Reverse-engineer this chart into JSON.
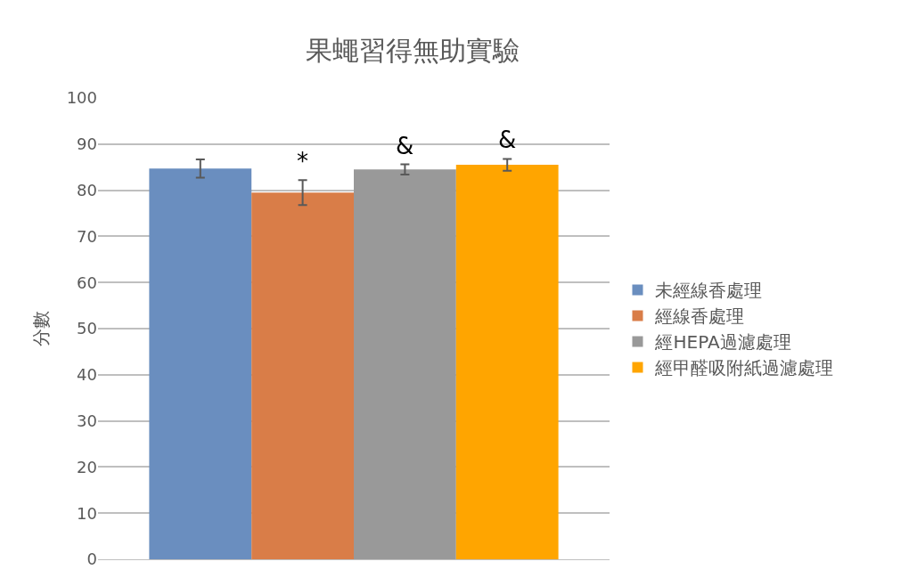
{
  "chart_data": {
    "type": "bar",
    "title": "果蠅習得無助實驗",
    "ylabel": "分數",
    "categories": [
      null
    ],
    "series": [
      {
        "name": "未經線香處理",
        "color": "#6a8ebf",
        "values": [
          84.7
        ],
        "errors": [
          2.0
        ]
      },
      {
        "name": "經線香處理",
        "color": "#d97d48",
        "values": [
          79.5
        ],
        "errors": [
          2.7
        ]
      },
      {
        "name": "經HEPA過濾處理",
        "color": "#999999",
        "values": [
          84.5
        ],
        "errors": [
          1.1
        ]
      },
      {
        "name": "經甲醛吸附紙過濾處理",
        "color": "#ffa500",
        "values": [
          85.5
        ],
        "errors": [
          1.3
        ]
      }
    ],
    "annotations": [
      "*",
      "&",
      "&"
    ],
    "ylim": [
      0,
      100
    ],
    "yticks": [
      0,
      10,
      20,
      30,
      40,
      50,
      60,
      70,
      80,
      90,
      100
    ],
    "grid": "y",
    "legend": "right"
  }
}
